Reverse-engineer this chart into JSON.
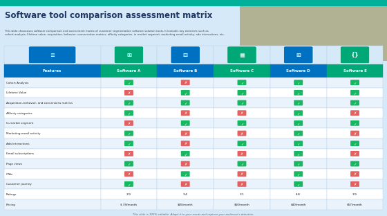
{
  "title": "Software tool comparison assessment matrix",
  "subtitle": "This slide showcases software comparison and assessment matrix of customer segmentation software solution tools. It includes key elements such as\ncohort analysis, lifetime value, acquisition, behavior, conversation metrics, affinity categories, in market segment, marketing email activity, ada interactions, etc.",
  "footer": "This slide is 100% editable. Adapt it to your needs and capture your audience's attention.",
  "title_color": "#1F3864",
  "slide_bg": "#D6E9F8",
  "header_blue": "#0070C0",
  "header_green_a": "#00A878",
  "header_green_c": "#00A878",
  "header_green_e": "#00A878",
  "columns": [
    "Features",
    "Software A",
    "Software B",
    "Software C",
    "Software D",
    "Software E"
  ],
  "col_header_colors": [
    "#0070C0",
    "#00A878",
    "#0070C0",
    "#00A878",
    "#0070C0",
    "#00A878"
  ],
  "icon_bg_colors": [
    "#0070C0",
    "#00A878",
    "#0070C0",
    "#00A878",
    "#0070C0",
    "#00A878"
  ],
  "rows": [
    "Cohort Analysis",
    "Lifetime Value",
    "Acquisition, behavior, and conversions metrics",
    "Affinity categories",
    "In-market segment",
    "Marketing email activity",
    "Ada Interactions",
    "Email subscriptions",
    "Page views",
    "CTAs",
    "Customer journey",
    "Ratings",
    "Pricing"
  ],
  "data": [
    [
      "check",
      "cross",
      "check",
      "check",
      "check"
    ],
    [
      "cross",
      "check",
      "check",
      "check",
      "check"
    ],
    [
      "check",
      "check",
      "check",
      "check",
      "check"
    ],
    [
      "check",
      "cross",
      "cross",
      "check",
      "cross"
    ],
    [
      "cross",
      "check",
      "check",
      "check",
      "check"
    ],
    [
      "check",
      "cross",
      "cross",
      "check",
      "cross"
    ],
    [
      "check",
      "cross",
      "check",
      "check",
      "check"
    ],
    [
      "cross",
      "check",
      "cross",
      "check",
      "cross"
    ],
    [
      "check",
      "cross",
      "check",
      "check",
      "check"
    ],
    [
      "cross",
      "check",
      "cross",
      "check",
      "cross"
    ],
    [
      "check",
      "cross",
      "cross",
      "check",
      "cross"
    ],
    [
      "3.9",
      "3.4",
      "3.1",
      "4.8",
      "3.9"
    ],
    [
      "$ 39/month",
      "$45/month",
      "$50/month",
      "$40/month",
      "$57/month"
    ]
  ],
  "check_color": "#00B050",
  "cross_color": "#E05050",
  "rating_row": 11,
  "pricing_row": 12,
  "top_bar_color": "#00B09B",
  "border_color": "#B8D0E8"
}
